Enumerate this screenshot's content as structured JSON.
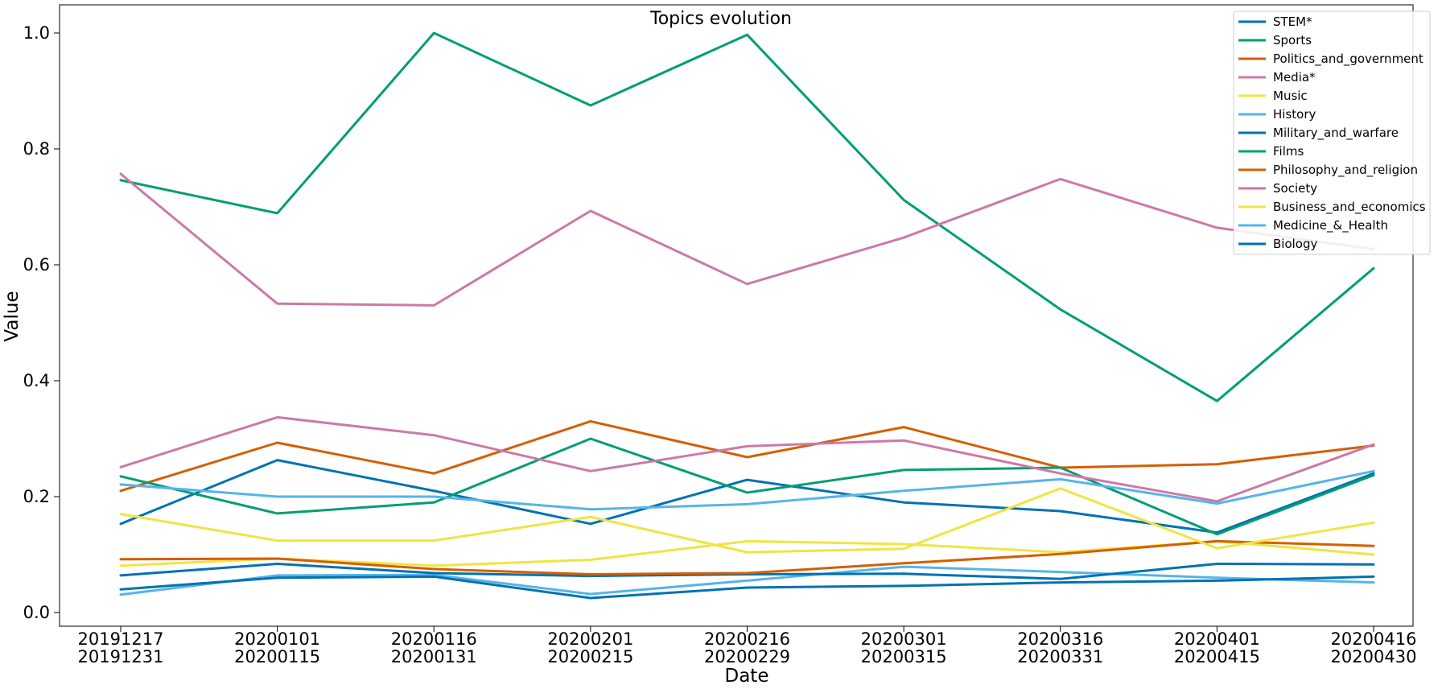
{
  "chart_data": {
    "type": "line",
    "title": "Topics evolution",
    "xlabel": "Date",
    "ylabel": "Value",
    "ylim": [
      -0.025,
      1.05
    ],
    "yticks": [
      "0.0",
      "0.2",
      "0.4",
      "0.6",
      "0.8",
      "1.0"
    ],
    "categories": [
      [
        "20191217",
        "20191231"
      ],
      [
        "20200101",
        "20200115"
      ],
      [
        "20200116",
        "20200131"
      ],
      [
        "20200201",
        "20200215"
      ],
      [
        "20200216",
        "20200229"
      ],
      [
        "20200301",
        "20200315"
      ],
      [
        "20200316",
        "20200331"
      ],
      [
        "20200401",
        "20200415"
      ],
      [
        "20200416",
        "20200430"
      ]
    ],
    "grid": false,
    "legend_position": "top-right",
    "series": [
      {
        "name": "STEM*",
        "color": "#0072B2",
        "values": [
          0.153,
          0.263,
          0.21,
          0.153,
          0.229,
          0.19,
          0.175,
          0.138,
          0.24
        ]
      },
      {
        "name": "Sports",
        "color": "#009E73",
        "values": [
          0.746,
          0.689,
          1.0,
          0.875,
          0.997,
          0.712,
          0.523,
          0.365,
          0.594
        ]
      },
      {
        "name": "Politics_and_government",
        "color": "#D55E00",
        "values": [
          0.21,
          0.293,
          0.24,
          0.33,
          0.268,
          0.32,
          0.25,
          0.256,
          0.288
        ]
      },
      {
        "name": "Media*",
        "color": "#CC79A7",
        "values": [
          0.757,
          0.533,
          0.53,
          0.693,
          0.567,
          0.647,
          0.748,
          0.664,
          0.627
        ]
      },
      {
        "name": "Music",
        "color": "#F0E442",
        "values": [
          0.081,
          0.093,
          0.081,
          0.091,
          0.123,
          0.118,
          0.104,
          0.123,
          0.1
        ]
      },
      {
        "name": "History",
        "color": "#56B4E9",
        "values": [
          0.031,
          0.064,
          0.065,
          0.032,
          0.055,
          0.079,
          0.07,
          0.06,
          0.052
        ]
      },
      {
        "name": "Military_and_warfare",
        "color": "#0072B2",
        "values": [
          0.064,
          0.084,
          0.068,
          0.063,
          0.066,
          0.067,
          0.058,
          0.084,
          0.083
        ]
      },
      {
        "name": "Films",
        "color": "#009E73",
        "values": [
          0.235,
          0.171,
          0.19,
          0.3,
          0.207,
          0.246,
          0.25,
          0.135,
          0.237
        ]
      },
      {
        "name": "Philosophy_and_religion",
        "color": "#D55E00",
        "values": [
          0.092,
          0.093,
          0.075,
          0.066,
          0.068,
          0.085,
          0.101,
          0.123,
          0.115
        ]
      },
      {
        "name": "Society",
        "color": "#CC79A7",
        "values": [
          0.251,
          0.337,
          0.306,
          0.244,
          0.287,
          0.297,
          0.24,
          0.192,
          0.29
        ]
      },
      {
        "name": "Business_and_economics",
        "color": "#F0E442",
        "values": [
          0.17,
          0.124,
          0.124,
          0.165,
          0.104,
          0.11,
          0.214,
          0.111,
          0.155
        ]
      },
      {
        "name": "Medicine_&_Health",
        "color": "#56B4E9",
        "values": [
          0.221,
          0.2,
          0.2,
          0.178,
          0.187,
          0.21,
          0.23,
          0.188,
          0.244
        ]
      },
      {
        "name": "Biology",
        "color": "#0072B2",
        "values": [
          0.04,
          0.06,
          0.062,
          0.025,
          0.043,
          0.046,
          0.052,
          0.055,
          0.062
        ]
      }
    ]
  }
}
